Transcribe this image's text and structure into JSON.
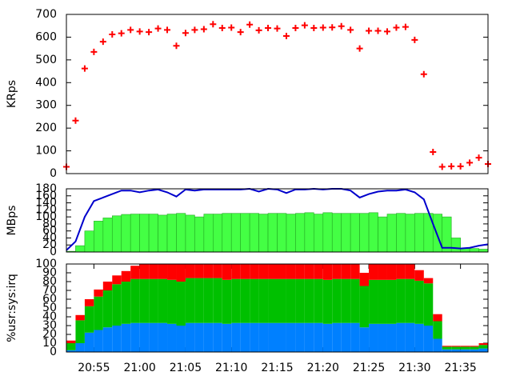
{
  "chart_data": [
    {
      "type": "scatter",
      "ylabel": "KRps",
      "color": "#ff0000",
      "x": [
        1252,
        1253,
        1254,
        1255,
        1256,
        1257,
        1258,
        1259,
        1260,
        1261,
        1262,
        1263,
        1264,
        1265,
        1266,
        1267,
        1268,
        1269,
        1270,
        1271,
        1272,
        1273,
        1274,
        1275,
        1276,
        1277,
        1278,
        1279,
        1280,
        1281,
        1282,
        1283,
        1284,
        1285,
        1286,
        1287,
        1288,
        1289,
        1290,
        1291,
        1292,
        1293,
        1294,
        1295,
        1296,
        1297,
        1298
      ],
      "values": [
        30,
        233,
        462,
        535,
        580,
        612,
        617,
        632,
        625,
        622,
        638,
        632,
        562,
        618,
        632,
        635,
        657,
        640,
        642,
        622,
        655,
        630,
        640,
        638,
        605,
        640,
        652,
        640,
        642,
        643,
        648,
        632,
        550,
        628,
        628,
        625,
        642,
        645,
        588,
        437,
        95,
        30,
        32,
        32,
        48,
        70,
        42
      ],
      "xlim": [
        1252,
        1298
      ],
      "ylim": [
        0,
        700
      ],
      "yticks": [
        0,
        100,
        200,
        300,
        400,
        500,
        600,
        700
      ]
    },
    {
      "type": "bar",
      "ylabel": "MBps",
      "x": [
        1252,
        1253,
        1254,
        1255,
        1256,
        1257,
        1258,
        1259,
        1260,
        1261,
        1262,
        1263,
        1264,
        1265,
        1266,
        1267,
        1268,
        1269,
        1270,
        1271,
        1272,
        1273,
        1274,
        1275,
        1276,
        1277,
        1278,
        1279,
        1280,
        1281,
        1282,
        1283,
        1284,
        1285,
        1286,
        1287,
        1288,
        1289,
        1290,
        1291,
        1292,
        1293,
        1294,
        1295,
        1296,
        1297,
        1298
      ],
      "series": [
        {
          "color": "#44ff44",
          "values": [
            2,
            18,
            60,
            88,
            97,
            103,
            107,
            108,
            108,
            108,
            105,
            108,
            110,
            105,
            100,
            108,
            108,
            110,
            110,
            110,
            110,
            108,
            110,
            110,
            108,
            110,
            112,
            108,
            112,
            110,
            110,
            110,
            110,
            112,
            100,
            108,
            110,
            108,
            110,
            110,
            108,
            100,
            40,
            10,
            10,
            8,
            12
          ]
        },
        {
          "type": "line",
          "color": "#0000cc",
          "values": [
            5,
            30,
            100,
            145,
            155,
            165,
            175,
            175,
            170,
            175,
            178,
            170,
            158,
            178,
            175,
            178,
            178,
            178,
            178,
            178,
            180,
            172,
            180,
            178,
            168,
            178,
            178,
            180,
            178,
            180,
            180,
            175,
            155,
            165,
            172,
            175,
            175,
            178,
            170,
            150,
            80,
            12,
            12,
            10,
            12,
            18,
            22
          ]
        }
      ],
      "xlim": [
        1252,
        1298
      ],
      "ylim": [
        0,
        180
      ],
      "yticks": [
        0,
        20,
        40,
        60,
        80,
        100,
        120,
        140,
        160,
        180
      ]
    },
    {
      "type": "stacked_bar",
      "ylabel": "%usr:sys:irq",
      "x": [
        1252,
        1253,
        1254,
        1255,
        1256,
        1257,
        1258,
        1259,
        1260,
        1261,
        1262,
        1263,
        1264,
        1265,
        1266,
        1267,
        1268,
        1269,
        1270,
        1271,
        1272,
        1273,
        1274,
        1275,
        1276,
        1277,
        1278,
        1279,
        1280,
        1281,
        1282,
        1283,
        1284,
        1285,
        1286,
        1287,
        1288,
        1289,
        1290,
        1291,
        1292,
        1293,
        1294,
        1295,
        1296,
        1297,
        1298
      ],
      "series": [
        {
          "color": "#0080ff",
          "values": [
            2,
            10,
            22,
            25,
            28,
            30,
            32,
            33,
            33,
            33,
            33,
            32,
            30,
            33,
            33,
            33,
            33,
            32,
            33,
            33,
            33,
            33,
            33,
            33,
            33,
            33,
            33,
            33,
            32,
            33,
            33,
            33,
            28,
            32,
            32,
            32,
            33,
            33,
            32,
            30,
            15,
            3,
            3,
            3,
            3,
            4,
            5
          ]
        },
        {
          "color": "#00c000",
          "values": [
            8,
            26,
            30,
            38,
            42,
            47,
            48,
            50,
            50,
            50,
            50,
            50,
            50,
            51,
            51,
            51,
            51,
            50,
            50,
            50,
            50,
            50,
            50,
            50,
            50,
            50,
            50,
            50,
            50,
            50,
            50,
            50,
            47,
            50,
            50,
            50,
            50,
            50,
            49,
            48,
            20,
            3,
            3,
            3,
            3,
            4,
            4
          ]
        },
        {
          "color": "#ff0000",
          "values": [
            3,
            6,
            8,
            8,
            10,
            10,
            12,
            15,
            17,
            17,
            17,
            18,
            20,
            16,
            16,
            16,
            16,
            18,
            17,
            17,
            17,
            17,
            17,
            17,
            17,
            17,
            17,
            17,
            18,
            17,
            17,
            17,
            15,
            18,
            18,
            18,
            17,
            17,
            12,
            6,
            8,
            1,
            1,
            1,
            1,
            2,
            2
          ]
        }
      ],
      "xlim": [
        1252,
        1298
      ],
      "ylim": [
        0,
        100
      ],
      "yticks": [
        0,
        10,
        20,
        30,
        40,
        50,
        60,
        70,
        80,
        90,
        100
      ],
      "xticks": [
        {
          "value": 1255,
          "label": "20:55"
        },
        {
          "value": 1260,
          "label": "21:00"
        },
        {
          "value": 1265,
          "label": "21:05"
        },
        {
          "value": 1270,
          "label": "21:10"
        },
        {
          "value": 1275,
          "label": "21:15"
        },
        {
          "value": 1280,
          "label": "21:20"
        },
        {
          "value": 1285,
          "label": "21:25"
        },
        {
          "value": 1290,
          "label": "21:30"
        },
        {
          "value": 1295,
          "label": "21:35"
        }
      ]
    }
  ]
}
